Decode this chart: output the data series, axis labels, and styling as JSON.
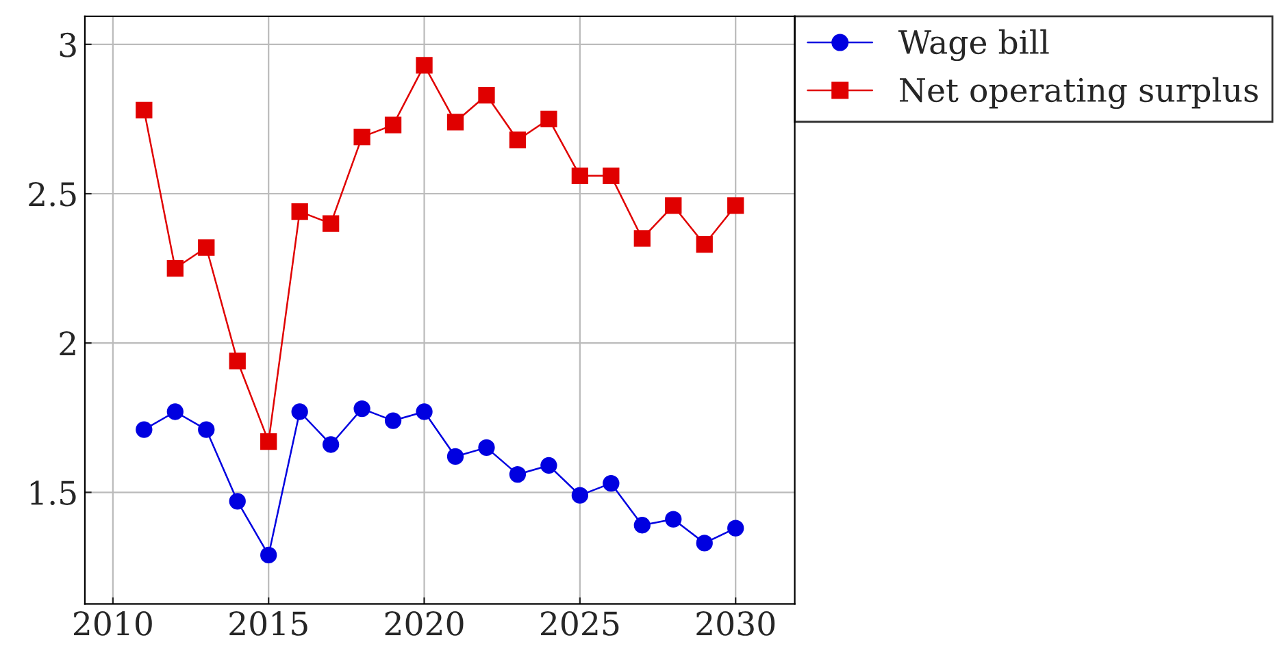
{
  "chart_data": {
    "type": "line",
    "x": [
      2011,
      2012,
      2013,
      2014,
      2015,
      2016,
      2017,
      2018,
      2019,
      2020,
      2021,
      2022,
      2023,
      2024,
      2025,
      2026,
      2027,
      2028,
      2029,
      2030
    ],
    "series": [
      {
        "name": "Wage bill",
        "color": "#0000e0",
        "marker": "circle",
        "values": [
          1.71,
          1.77,
          1.71,
          1.47,
          1.29,
          1.77,
          1.66,
          1.78,
          1.74,
          1.77,
          1.62,
          1.65,
          1.56,
          1.59,
          1.49,
          1.53,
          1.39,
          1.41,
          1.33,
          1.38
        ]
      },
      {
        "name": "Net operating surplus",
        "color": "#e00000",
        "marker": "square",
        "values": [
          2.78,
          2.25,
          2.32,
          1.94,
          1.67,
          2.44,
          2.4,
          2.69,
          2.73,
          2.93,
          2.74,
          2.83,
          2.68,
          2.75,
          2.56,
          2.56,
          2.35,
          2.46,
          2.33,
          2.46
        ]
      }
    ],
    "xlim": [
      2009.1,
      2031.9
    ],
    "xticks": [
      2010,
      2015,
      2020,
      2025,
      2030
    ],
    "ylim": [
      1.126,
      3.094
    ],
    "yticks": [
      1.5,
      2,
      2.5,
      3
    ],
    "grid": true,
    "legend": "top right",
    "line_style": "solid"
  }
}
